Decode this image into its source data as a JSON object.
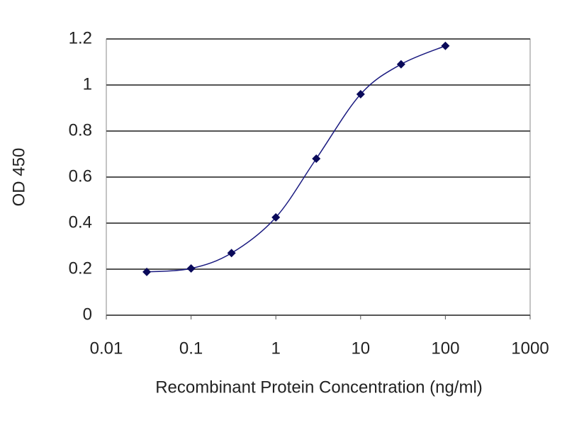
{
  "chart_data": {
    "type": "line",
    "x_label": "Recombinant Protein Concentration (ng/ml)",
    "y_label": "OD 450",
    "x": [
      0.03,
      0.1,
      0.3,
      1,
      3,
      10,
      30,
      100
    ],
    "values": [
      0.188,
      0.203,
      0.27,
      0.425,
      0.68,
      0.96,
      1.09,
      1.17
    ],
    "color": "#1a1a80",
    "marker_color": "#0a0a5a",
    "xlim": [
      0.01,
      1000
    ],
    "xticks": [
      0.01,
      0.1,
      1,
      10,
      100,
      1000
    ],
    "log_x": true,
    "ylim": [
      0,
      1.2
    ],
    "yticks": [
      0,
      0.2,
      0.4,
      0.6,
      0.8,
      1,
      1.2
    ],
    "grid": true
  }
}
